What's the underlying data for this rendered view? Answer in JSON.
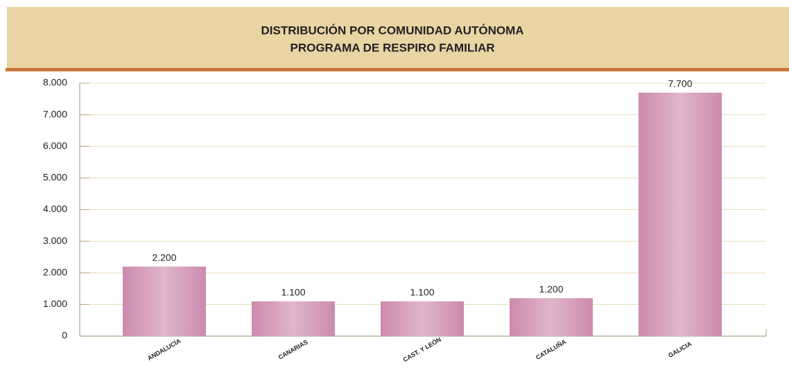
{
  "chart_data": {
    "type": "bar",
    "title": [
      "DISTRIBUCIÓN POR COMUNIDAD AUTÓNOMA",
      "PROGRAMA DE RESPIRO FAMILIAR"
    ],
    "categories": [
      "ANDALUCÍA",
      "CANARIAS",
      "CAST. Y LEÓN",
      "CATALUÑA",
      "GALICIA"
    ],
    "values": [
      2200,
      1100,
      1100,
      1200,
      7700
    ],
    "value_labels": [
      "2.200",
      "1.100",
      "1.100",
      "1.200",
      "7.700"
    ],
    "color": "#cc8aae",
    "ylim": [
      0,
      8000
    ],
    "yticks": [
      0,
      {
        "value": 1000,
        "label": "1.000"
      },
      {
        "value": 2000,
        "label": "2.000"
      },
      {
        "value": 3000,
        "label": "3.000"
      },
      {
        "value": 4000,
        "label": "4.000"
      },
      {
        "value": 5000,
        "label": "5.000"
      },
      {
        "value": 6000,
        "label": "6.000"
      },
      {
        "value": 7000,
        "label": "7.000"
      },
      {
        "value": 8000,
        "label": "8.000"
      }
    ],
    "grid": true
  }
}
